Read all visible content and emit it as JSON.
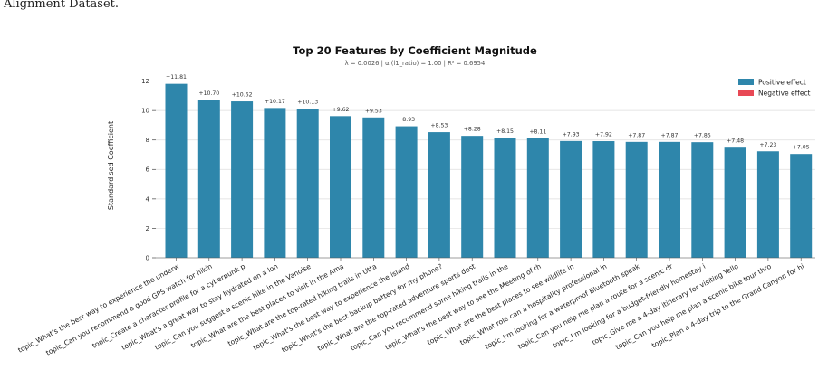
{
  "caption": "Alignment Dataset.",
  "chart_data": {
    "type": "bar",
    "title": "Top 20 Features by Coefficient Magnitude",
    "subtitle": "λ = 0.0026  |  α (l1_ratio) = 1.00  |  R² = 0.6954",
    "xlabel": "",
    "ylabel": "Standardised Coefficient",
    "ylim": [
      0,
      12.6
    ],
    "yticks": [
      0,
      2,
      4,
      6,
      8,
      10,
      12
    ],
    "grid": "horizontal",
    "legend": {
      "position": "top-right",
      "entries": [
        {
          "label": "Positive effect",
          "color": "#2e86ab"
        },
        {
          "label": "Negative effect",
          "color": "#e84855"
        }
      ]
    },
    "bar_color": "#2e86ab",
    "categories": [
      "topic_What's the best way to experience the underw",
      "topic_Can you recommend a good GPS watch for hikin",
      "topic_Create a character profile for a cyberpunk p",
      "topic_What's a great way to stay hydrated on a lon",
      "topic_Can you suggest a scenic hike in the Vanoise",
      "topic_What are the best places to visit in the Ama",
      "topic_What are the top-rated hiking trails in Utta",
      "topic_What's the best way to experience the island",
      "topic_What's the best backup battery for my phone?",
      "topic_What are the top-rated adventure sports dest",
      "topic_Can you recommend some hiking trails in the",
      "topic_What's the best way to see the Meeting of th",
      "topic_What are the best places to see wildlife in",
      "topic_What role can a hospitality professional in",
      "topic_I'm looking for a waterproof Bluetooth speak",
      "topic_Can you help me plan a route for a scenic dr",
      "topic_I'm looking for a budget-friendly homestay i",
      "topic_Give me a 4-day itinerary for visiting Yello",
      "topic_Can you help me plan a scenic bike tour thro",
      "topic_Plan a 4-day trip to the Grand Canyon for hi"
    ],
    "values": [
      11.81,
      10.7,
      10.62,
      10.17,
      10.13,
      9.62,
      9.53,
      8.93,
      8.53,
      8.28,
      8.15,
      8.11,
      7.93,
      7.92,
      7.87,
      7.87,
      7.85,
      7.48,
      7.23,
      7.05
    ],
    "value_labels": [
      "+11.81",
      "+10.70",
      "+10.62",
      "+10.17",
      "+10.13",
      "+9.62",
      "+9.53",
      "+8.93",
      "+8.53",
      "+8.28",
      "+8.15",
      "+8.11",
      "+7.93",
      "+7.92",
      "+7.87",
      "+7.87",
      "+7.85",
      "+7.48",
      "+7.23",
      "+7.05"
    ]
  }
}
